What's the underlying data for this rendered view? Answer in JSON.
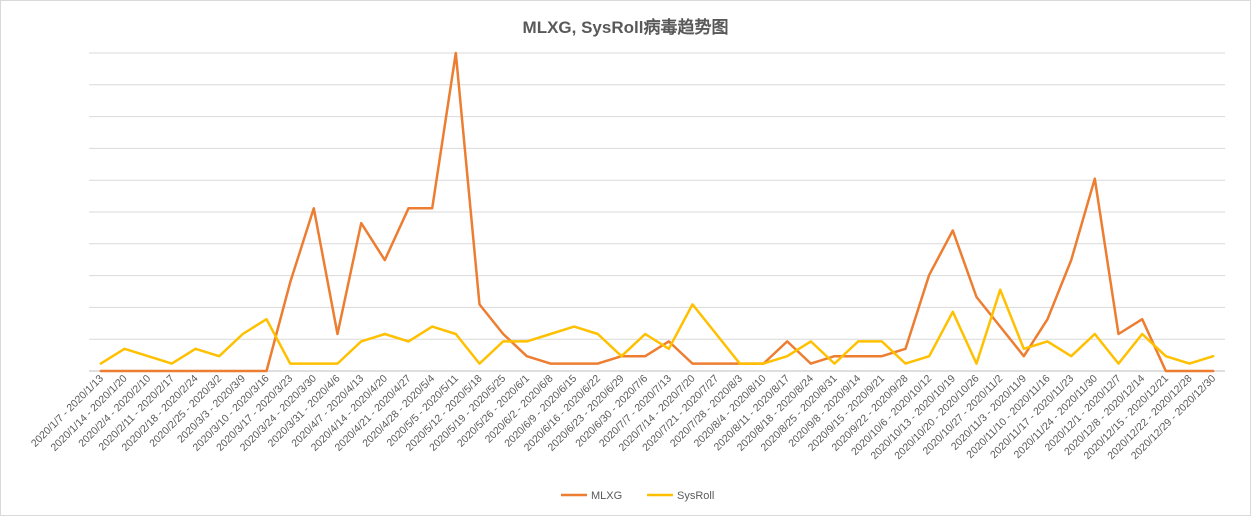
{
  "chart_data": {
    "type": "line",
    "title": "MLXG, SysRoll病毒趋势图",
    "xlabel": "",
    "ylabel": "",
    "ylim": [
      0,
      43
    ],
    "grid": true,
    "legend_position": "bottom",
    "categories": [
      "2020/1/7 - 2020/1/13",
      "2020/1/14 - 2020/1/20",
      "2020/2/4 - 2020/2/10",
      "2020/2/11 - 2020/2/17",
      "2020/2/18 - 2020/2/24",
      "2020/2/25 - 2020/3/2",
      "2020/3/3 - 2020/3/9",
      "2020/3/10 - 2020/3/16",
      "2020/3/17 - 2020/3/23",
      "2020/3/24 - 2020/3/30",
      "2020/3/31 - 2020/4/6",
      "2020/4/7 - 2020/4/13",
      "2020/4/14 - 2020/4/20",
      "2020/4/21 - 2020/4/27",
      "2020/4/28 - 2020/5/4",
      "2020/5/5 - 2020/5/11",
      "2020/5/12 - 2020/5/18",
      "2020/5/19 - 2020/5/25",
      "2020/5/26 - 2020/6/1",
      "2020/6/2 - 2020/6/8",
      "2020/6/9 - 2020/6/15",
      "2020/6/16 - 2020/6/22",
      "2020/6/23 - 2020/6/29",
      "2020/6/30 - 2020/7/6",
      "2020/7/7 - 2020/7/13",
      "2020/7/14 - 2020/7/20",
      "2020/7/21 - 2020/7/27",
      "2020/7/28 - 2020/8/3",
      "2020/8/4 - 2020/8/10",
      "2020/8/11 - 2020/8/17",
      "2020/8/18 - 2020/8/24",
      "2020/8/25 - 2020/8/31",
      "2020/9/8 - 2020/9/14",
      "2020/9/15 - 2020/9/21",
      "2020/9/22 - 2020/9/28",
      "2020/10/6 - 2020/10/12",
      "2020/10/13 - 2020/10/19",
      "2020/10/20 - 2020/10/26",
      "2020/10/27 - 2020/11/2",
      "2020/11/3 - 2020/11/9",
      "2020/11/10 - 2020/11/16",
      "2020/11/17 - 2020/11/23",
      "2020/11/24 - 2020/11/30",
      "2020/12/1 - 2020/12/7",
      "2020/12/8 - 2020/12/14",
      "2020/12/15 - 2020/12/21",
      "2020/12/22 - 2020/12/28",
      "2020/12/29 - 2020/12/30"
    ],
    "series": [
      {
        "name": "MLXG",
        "color": "#ED7D31",
        "values": [
          0,
          0,
          0,
          0,
          0,
          0,
          0,
          0,
          12,
          22,
          5,
          20,
          15,
          22,
          22,
          43,
          9,
          5,
          2,
          1,
          1,
          1,
          2,
          2,
          4,
          1,
          1,
          1,
          1,
          4,
          1,
          2,
          2,
          2,
          3,
          13,
          19,
          10,
          6,
          2,
          7,
          15,
          26,
          5,
          7,
          0,
          0,
          0
        ]
      },
      {
        "name": "SysRoll",
        "color": "#FFC000",
        "values": [
          1,
          3,
          2,
          1,
          3,
          2,
          5,
          7,
          1,
          1,
          1,
          4,
          5,
          4,
          6,
          5,
          1,
          4,
          4,
          5,
          6,
          5,
          2,
          5,
          3,
          9,
          5,
          1,
          1,
          2,
          4,
          1,
          4,
          4,
          1,
          2,
          8,
          1,
          11,
          3,
          4,
          2,
          5,
          1,
          5,
          2,
          1,
          2
        ]
      }
    ]
  }
}
